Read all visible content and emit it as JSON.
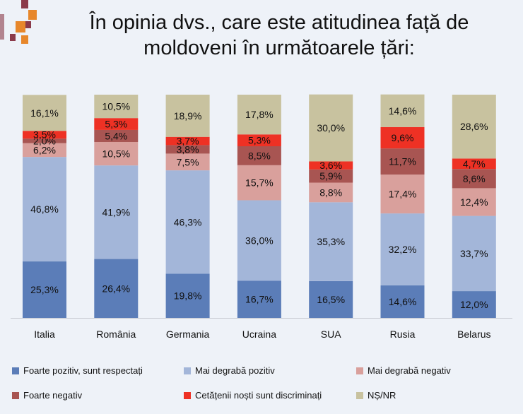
{
  "title_lines": [
    "În opinia dvs., care este atitudinea față de",
    "moldoveni în următoarele țări:"
  ],
  "colors": {
    "background": "#eef2f8",
    "decoration_orange": "#e7872b",
    "decoration_maroon": "#8b3a4a"
  },
  "chart_data": {
    "type": "bar",
    "stacked": true,
    "orientation": "vertical",
    "percent_stacked": true,
    "categories": [
      "Italia",
      "România",
      "Germania",
      "Ucraina",
      "SUA",
      "Rusia",
      "Belarus"
    ],
    "series": [
      {
        "name": "Foarte pozitiv, sunt respectați",
        "color": "#5b7db8",
        "values": [
          25.3,
          26.4,
          19.8,
          16.7,
          16.5,
          14.6,
          12.0
        ],
        "labels": [
          "25,3%",
          "26,4%",
          "19,8%",
          "16,7%",
          "16,5%",
          "14,6%",
          "12,0%"
        ]
      },
      {
        "name": "Mai degrabă pozitiv",
        "color": "#a3b6d9",
        "values": [
          46.8,
          41.9,
          46.3,
          36.0,
          35.3,
          32.2,
          33.7
        ],
        "labels": [
          "46,8%",
          "41,9%",
          "46,3%",
          "36,0%",
          "35,3%",
          "32,2%",
          "33,7%"
        ]
      },
      {
        "name": "Mai degrabă negativ",
        "color": "#d9a09c",
        "values": [
          6.2,
          10.5,
          7.5,
          15.7,
          8.8,
          17.4,
          12.4
        ],
        "labels": [
          "6,2%",
          "10,5%",
          "7,5%",
          "15,7%",
          "8,8%",
          "17,4%",
          "12,4%"
        ]
      },
      {
        "name": "Foarte negativ",
        "color": "#a85552",
        "values": [
          2.0,
          5.4,
          3.8,
          8.5,
          5.9,
          11.7,
          8.6
        ],
        "labels": [
          "2,0%",
          "5,4%",
          "3,8%",
          "8,5%",
          "5,9%",
          "11,7%",
          "8,6%"
        ]
      },
      {
        "name": "Cetățenii noști sunt discriminați",
        "color": "#ee3124",
        "values": [
          3.5,
          5.3,
          3.7,
          5.3,
          3.6,
          9.6,
          4.7
        ],
        "labels": [
          "3,5%",
          "5,3%",
          "3,7%",
          "5,3%",
          "3,6%",
          "9,6%",
          "4,7%"
        ]
      },
      {
        "name": "NȘ/NR",
        "color": "#c8c29f",
        "values": [
          16.1,
          10.5,
          18.9,
          17.8,
          30.0,
          14.6,
          28.6
        ],
        "labels": [
          "16,1%",
          "10,5%",
          "18,9%",
          "17,8%",
          "30,0%",
          "14,6%",
          "28,6%"
        ]
      }
    ],
    "ylim": [
      0,
      100
    ],
    "grid": false,
    "legend_position": "bottom"
  }
}
